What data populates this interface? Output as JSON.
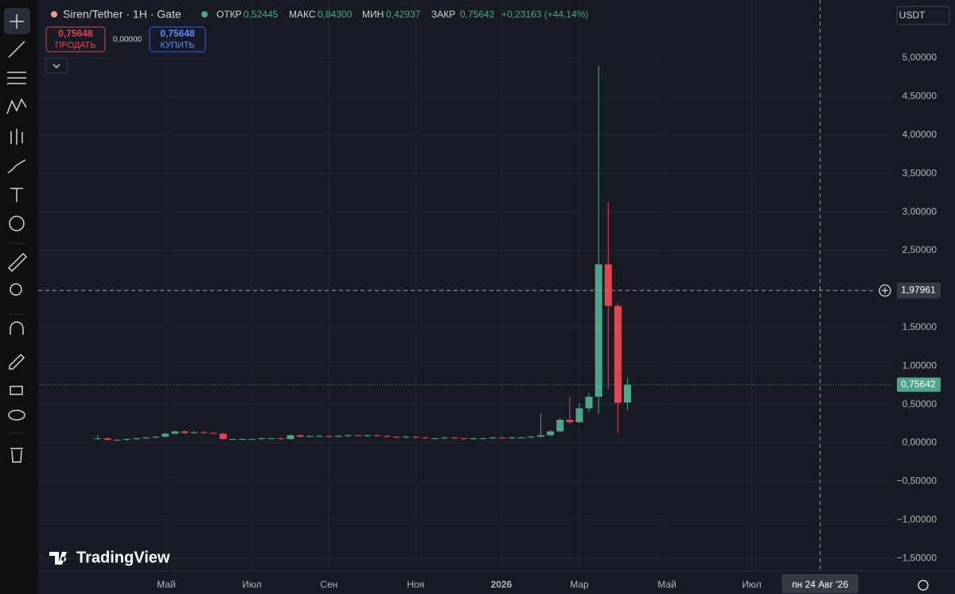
{
  "header": {
    "symbol": "Siren/Tether · 1H · Gate",
    "open_label": "ОТКР",
    "open": "0,52445",
    "high_label": "МАКС",
    "high": "0,84300",
    "low_label": "МИН",
    "low": "0,42937",
    "close_label": "ЗАКР",
    "close": "0,75642",
    "change": "+0,23163 (+44,14%)"
  },
  "trade": {
    "sell_price": "0,75648",
    "sell": "ПРОДАТЬ",
    "spread": "0,00000",
    "buy_price": "0,75648",
    "buy": "КУПИТЬ"
  },
  "currency": "USDT",
  "brand": "TradingView",
  "chart_data": {
    "type": "candlestick",
    "up_color": "#4fa58a",
    "down_color": "#e0464f",
    "grid": true,
    "open": [
      0.05,
      0.06,
      0.04,
      0.04,
      0.05,
      0.06,
      0.07,
      0.08,
      0.12,
      0.15,
      0.13,
      0.14,
      0.13,
      0.12,
      0.05,
      0.05,
      0.05,
      0.05,
      0.06,
      0.06,
      0.05,
      0.1,
      0.08,
      0.09,
      0.09,
      0.08,
      0.09,
      0.1,
      0.09,
      0.1,
      0.09,
      0.08,
      0.07,
      0.08,
      0.07,
      0.06,
      0.06,
      0.07,
      0.06,
      0.05,
      0.06,
      0.06,
      0.07,
      0.06,
      0.07,
      0.07,
      0.08,
      0.1,
      0.15,
      0.3,
      0.27,
      0.45,
      0.6,
      2.32,
      1.78,
      0.52445
    ],
    "high": [
      0.1,
      0.07,
      0.05,
      0.06,
      0.07,
      0.08,
      0.09,
      0.13,
      0.16,
      0.16,
      0.15,
      0.15,
      0.14,
      0.13,
      0.06,
      0.06,
      0.06,
      0.07,
      0.07,
      0.07,
      0.11,
      0.11,
      0.1,
      0.1,
      0.1,
      0.1,
      0.11,
      0.11,
      0.11,
      0.11,
      0.1,
      0.09,
      0.09,
      0.09,
      0.08,
      0.07,
      0.08,
      0.08,
      0.07,
      0.07,
      0.07,
      0.08,
      0.08,
      0.08,
      0.08,
      0.09,
      0.38,
      0.17,
      0.32,
      0.6,
      0.52,
      0.65,
      4.9,
      3.13,
      1.82,
      0.843
    ],
    "low": [
      0.04,
      0.03,
      0.03,
      0.03,
      0.04,
      0.05,
      0.06,
      0.07,
      0.11,
      0.12,
      0.12,
      0.12,
      0.12,
      0.04,
      0.04,
      0.04,
      0.04,
      0.04,
      0.05,
      0.04,
      0.04,
      0.07,
      0.07,
      0.08,
      0.07,
      0.07,
      0.08,
      0.08,
      0.08,
      0.08,
      0.07,
      0.06,
      0.06,
      0.06,
      0.05,
      0.05,
      0.05,
      0.05,
      0.04,
      0.04,
      0.05,
      0.05,
      0.05,
      0.05,
      0.06,
      0.06,
      0.07,
      0.09,
      0.14,
      0.25,
      0.26,
      0.4,
      0.38,
      0.7,
      0.12,
      0.42937
    ],
    "close": [
      0.06,
      0.04,
      0.04,
      0.05,
      0.06,
      0.07,
      0.08,
      0.12,
      0.15,
      0.13,
      0.14,
      0.13,
      0.12,
      0.05,
      0.05,
      0.05,
      0.05,
      0.06,
      0.06,
      0.05,
      0.1,
      0.08,
      0.09,
      0.09,
      0.08,
      0.09,
      0.1,
      0.09,
      0.1,
      0.09,
      0.08,
      0.07,
      0.08,
      0.07,
      0.06,
      0.06,
      0.07,
      0.06,
      0.05,
      0.06,
      0.06,
      0.07,
      0.06,
      0.07,
      0.07,
      0.08,
      0.1,
      0.15,
      0.3,
      0.27,
      0.45,
      0.6,
      2.32,
      1.78,
      0.52,
      0.75642
    ],
    "xlim": [
      -6.2,
      82.4
    ],
    "xticks": [
      {
        "value": 7.1,
        "label": "Май"
      },
      {
        "value": 16,
        "label": "Июл"
      },
      {
        "value": 24,
        "label": "Сен"
      },
      {
        "value": 33,
        "label": "Ноя"
      },
      {
        "value": 41.9,
        "label": "2026"
      },
      {
        "value": 50,
        "label": "Мар"
      },
      {
        "value": 59.1,
        "label": "Май"
      },
      {
        "value": 67.9,
        "label": "Июл"
      }
    ],
    "ylim": [
      -1.663,
      5.754
    ],
    "yticks": [
      {
        "value": -1.5,
        "label": "−1,50000"
      },
      {
        "value": -1,
        "label": "−1,00000"
      },
      {
        "value": -0.5,
        "label": "−0,50000"
      },
      {
        "value": 0,
        "label": "0,00000"
      },
      {
        "value": 0.5,
        "label": "0,50000"
      },
      {
        "value": 1,
        "label": "1,00000"
      },
      {
        "value": 1.5,
        "label": "1,50000"
      },
      {
        "value": 2,
        "label": "2,00000"
      },
      {
        "value": 2.5,
        "label": "2,50000"
      },
      {
        "value": 3,
        "label": "3,00000"
      },
      {
        "value": 3.5,
        "label": "3,50000"
      },
      {
        "value": 4,
        "label": "4,00000"
      },
      {
        "value": 4.5,
        "label": "4,50000"
      },
      {
        "value": 5,
        "label": "5,00000"
      }
    ],
    "last_price": {
      "value": 0.75642,
      "label": "0,75642"
    },
    "crosshair": {
      "y": {
        "value": 1.97961,
        "label": "1,97961"
      },
      "x": {
        "value": 75,
        "label": "пн 24 Авг '26"
      }
    }
  }
}
